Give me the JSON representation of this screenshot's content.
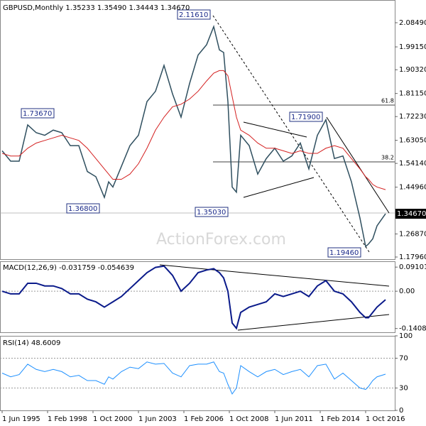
{
  "chart_data": [
    {
      "type": "line",
      "title": "GBPUSD,Monthly  1.35233 1.35490 1.34443 1.34670",
      "x": [
        "1995-06",
        "1995-12",
        "1996-06",
        "1996-12",
        "1997-06",
        "1997-12",
        "1998-06",
        "1998-12",
        "1999-06",
        "1999-12",
        "2000-06",
        "2000-12",
        "2001-06",
        "2001-09",
        "2001-12",
        "2002-06",
        "2002-12",
        "2003-06",
        "2003-12",
        "2004-06",
        "2004-12",
        "2005-06",
        "2005-12",
        "2006-06",
        "2006-12",
        "2007-06",
        "2007-11",
        "2008-03",
        "2008-06",
        "2008-09",
        "2008-12",
        "2009-03",
        "2009-06",
        "2009-12",
        "2010-06",
        "2010-12",
        "2011-06",
        "2011-12",
        "2012-06",
        "2012-12",
        "2013-06",
        "2013-12",
        "2014-06",
        "2014-12",
        "2015-06",
        "2015-12",
        "2016-06",
        "2016-10",
        "2016-12",
        "2017-03",
        "2017-06",
        "2017-12"
      ],
      "series": [
        {
          "color": "#2f4f5f",
          "values": [
            1.59,
            1.55,
            1.55,
            1.69,
            1.66,
            1.65,
            1.67,
            1.66,
            1.61,
            1.61,
            1.51,
            1.49,
            1.41,
            1.47,
            1.45,
            1.53,
            1.61,
            1.65,
            1.78,
            1.82,
            1.92,
            1.81,
            1.72,
            1.85,
            1.96,
            2.0,
            2.07,
            1.98,
            1.97,
            1.78,
            1.45,
            1.43,
            1.65,
            1.61,
            1.5,
            1.56,
            1.6,
            1.55,
            1.57,
            1.62,
            1.52,
            1.65,
            1.71,
            1.56,
            1.57,
            1.47,
            1.33,
            1.22,
            1.23,
            1.25,
            1.3,
            1.3467
          ]
        },
        {
          "color": "#d42020",
          "values": [
            1.58,
            1.57,
            1.57,
            1.6,
            1.62,
            1.63,
            1.64,
            1.65,
            1.64,
            1.63,
            1.6,
            1.56,
            1.52,
            1.5,
            1.48,
            1.48,
            1.5,
            1.54,
            1.6,
            1.67,
            1.72,
            1.76,
            1.77,
            1.79,
            1.82,
            1.86,
            1.89,
            1.9,
            1.9,
            1.88,
            1.8,
            1.72,
            1.67,
            1.65,
            1.62,
            1.6,
            1.6,
            1.59,
            1.58,
            1.59,
            1.58,
            1.58,
            1.6,
            1.61,
            1.6,
            1.56,
            1.52,
            1.49,
            1.48,
            1.46,
            1.45,
            1.44
          ]
        }
      ],
      "ylim": [
        1.1714,
        2.1727
      ],
      "yticks": [
        {
          "value": 2.0849,
          "label": "2.08490"
        },
        {
          "value": 1.9915,
          "label": "1.99150"
        },
        {
          "value": 1.9032,
          "label": "1.90320"
        },
        {
          "value": 1.8115,
          "label": "1.81150"
        },
        {
          "value": 1.7223,
          "label": "1.72230"
        },
        {
          "value": 1.6305,
          "label": "1.63050"
        },
        {
          "value": 1.5414,
          "label": "1.54140"
        },
        {
          "value": 1.4496,
          "label": "1.44960"
        },
        {
          "value": 1.2687,
          "label": "1.26870"
        },
        {
          "value": 1.1796,
          "label": "1.17960"
        }
      ],
      "current": {
        "value": 1.3467,
        "label": "1.34670"
      },
      "annotations": [
        "2.11610",
        "1.73670",
        "1.36800",
        "1.35030",
        "1.71900",
        "1.19460",
        "61.8",
        "38.2"
      ],
      "watermark": "ActionForex.com"
    },
    {
      "type": "line",
      "title": "MACD(12,26,9) -0.031759 -0.054639",
      "series": [
        {
          "color": "#0a1a8a",
          "values": [
            0.0,
            -0.01,
            -0.01,
            0.03,
            0.03,
            0.02,
            0.02,
            0.01,
            -0.01,
            -0.01,
            -0.03,
            -0.04,
            -0.06,
            -0.05,
            -0.04,
            -0.02,
            0.01,
            0.04,
            0.07,
            0.09,
            0.095,
            0.06,
            0.0,
            0.03,
            0.07,
            0.08,
            0.085,
            0.07,
            0.05,
            0.0,
            -0.12,
            -0.14,
            -0.08,
            -0.06,
            -0.05,
            -0.04,
            -0.01,
            -0.02,
            -0.01,
            0.0,
            -0.02,
            0.02,
            0.04,
            0.0,
            -0.01,
            -0.04,
            -0.08,
            -0.1,
            -0.1,
            -0.08,
            -0.06,
            -0.032
          ]
        }
      ],
      "ylim": [
        -0.155,
        0.113
      ],
      "yticks": [
        0.091015,
        {
          "value": 0,
          "label": "0.00"
        },
        -0.140843
      ]
    },
    {
      "type": "line",
      "title": "RSI(14) 48.6009",
      "series": [
        {
          "color": "#1e90ff",
          "values": [
            50,
            45,
            48,
            62,
            55,
            52,
            55,
            52,
            45,
            47,
            40,
            40,
            35,
            45,
            42,
            52,
            58,
            56,
            65,
            62,
            63,
            50,
            45,
            60,
            62,
            62,
            65,
            52,
            50,
            35,
            22,
            30,
            60,
            52,
            45,
            52,
            55,
            48,
            52,
            55,
            45,
            60,
            62,
            42,
            50,
            40,
            30,
            28,
            32,
            40,
            45,
            48.6
          ]
        }
      ],
      "ylim": [
        0,
        100
      ],
      "yticks": [
        100,
        70,
        30,
        0
      ],
      "xticks": [
        {
          "value": "1995-06",
          "label": "1 Jun 1995"
        },
        {
          "value": "1998-02",
          "label": "1 Feb 1998"
        },
        {
          "value": "2000-10",
          "label": "1 Oct 2000"
        },
        {
          "value": "2003-06",
          "label": "1 Jun 2003"
        },
        {
          "value": "2006-02",
          "label": "1 Feb 2006"
        },
        {
          "value": "2008-10",
          "label": "1 Oct 2008"
        },
        {
          "value": "2011-06",
          "label": "1 Jun 2011"
        },
        {
          "value": "2014-02",
          "label": "1 Feb 2014"
        },
        {
          "value": "2016-10",
          "label": "1 Oct 2016"
        }
      ]
    }
  ]
}
